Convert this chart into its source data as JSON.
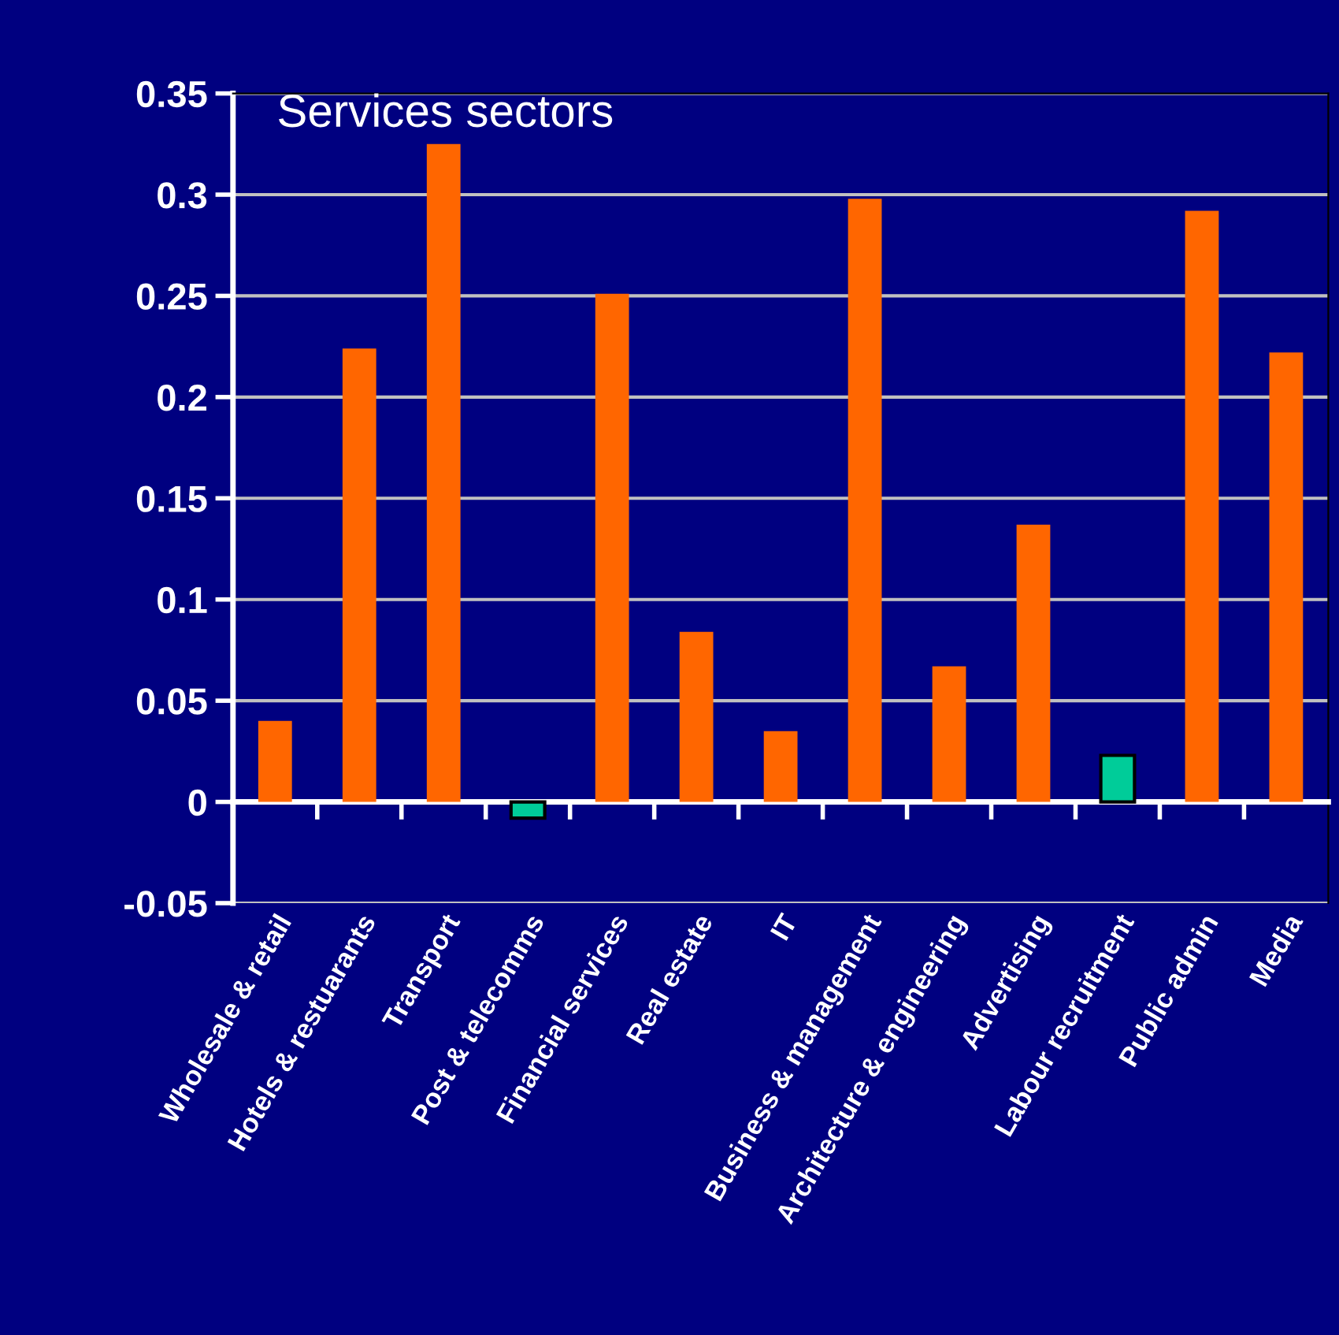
{
  "chart_data": {
    "type": "bar",
    "title": "Services sectors",
    "categories": [
      "Wholesale & retail",
      "Hotels & restuarants",
      "Transport",
      "Post & telecomms",
      "Financial services",
      "Real estate",
      "IT",
      "Business & management",
      "Architecture & engineering",
      "Advertising",
      "Labour recruitment",
      "Public admin",
      "Media"
    ],
    "values": [
      0.04,
      0.224,
      0.325,
      -0.008,
      0.251,
      0.084,
      0.035,
      0.298,
      0.067,
      0.137,
      0.023,
      0.292,
      0.222
    ],
    "colors": [
      "#ff6600",
      "#ff6600",
      "#ff6600",
      "#00cc99",
      "#ff6600",
      "#ff6600",
      "#ff6600",
      "#ff6600",
      "#ff6600",
      "#ff6600",
      "#00cc99",
      "#ff6600",
      "#ff6600"
    ],
    "ylim": [
      -0.05,
      0.35
    ],
    "yticks": [
      -0.05,
      0,
      0.05,
      0.1,
      0.15,
      0.2,
      0.25,
      0.3,
      0.35
    ],
    "grid": "y"
  }
}
